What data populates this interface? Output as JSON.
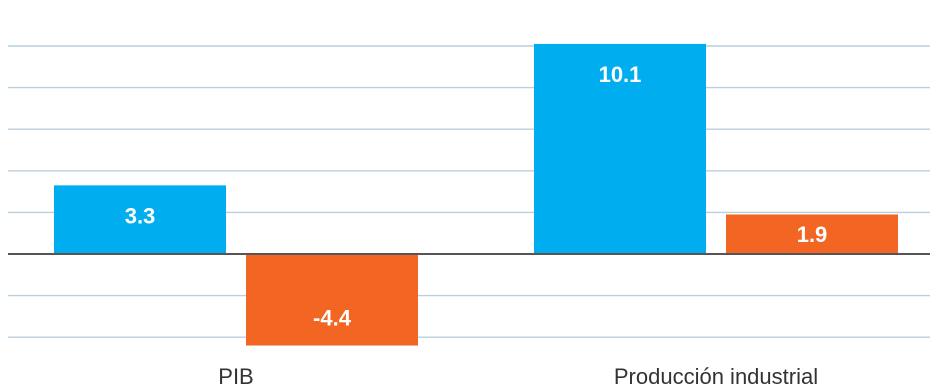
{
  "chart_data": {
    "type": "bar",
    "title": "",
    "categories": [
      "PIB",
      "Producción industrial"
    ],
    "series": [
      {
        "values": [
          3.3,
          10.1
        ],
        "color": "#00aeef"
      },
      {
        "values": [
          -4.4,
          1.9
        ],
        "color": "#f26522"
      }
    ],
    "data_labels": [
      [
        "3.3",
        "10.1"
      ],
      [
        "-4.4",
        "1.9"
      ]
    ],
    "ylim": [
      -4.5,
      10.5
    ],
    "gridline_step": 2.0,
    "grid": true,
    "legend": "none",
    "label_color": "#ffffff",
    "axis_color": "#555555",
    "grid_color": "#b8cfe0"
  }
}
